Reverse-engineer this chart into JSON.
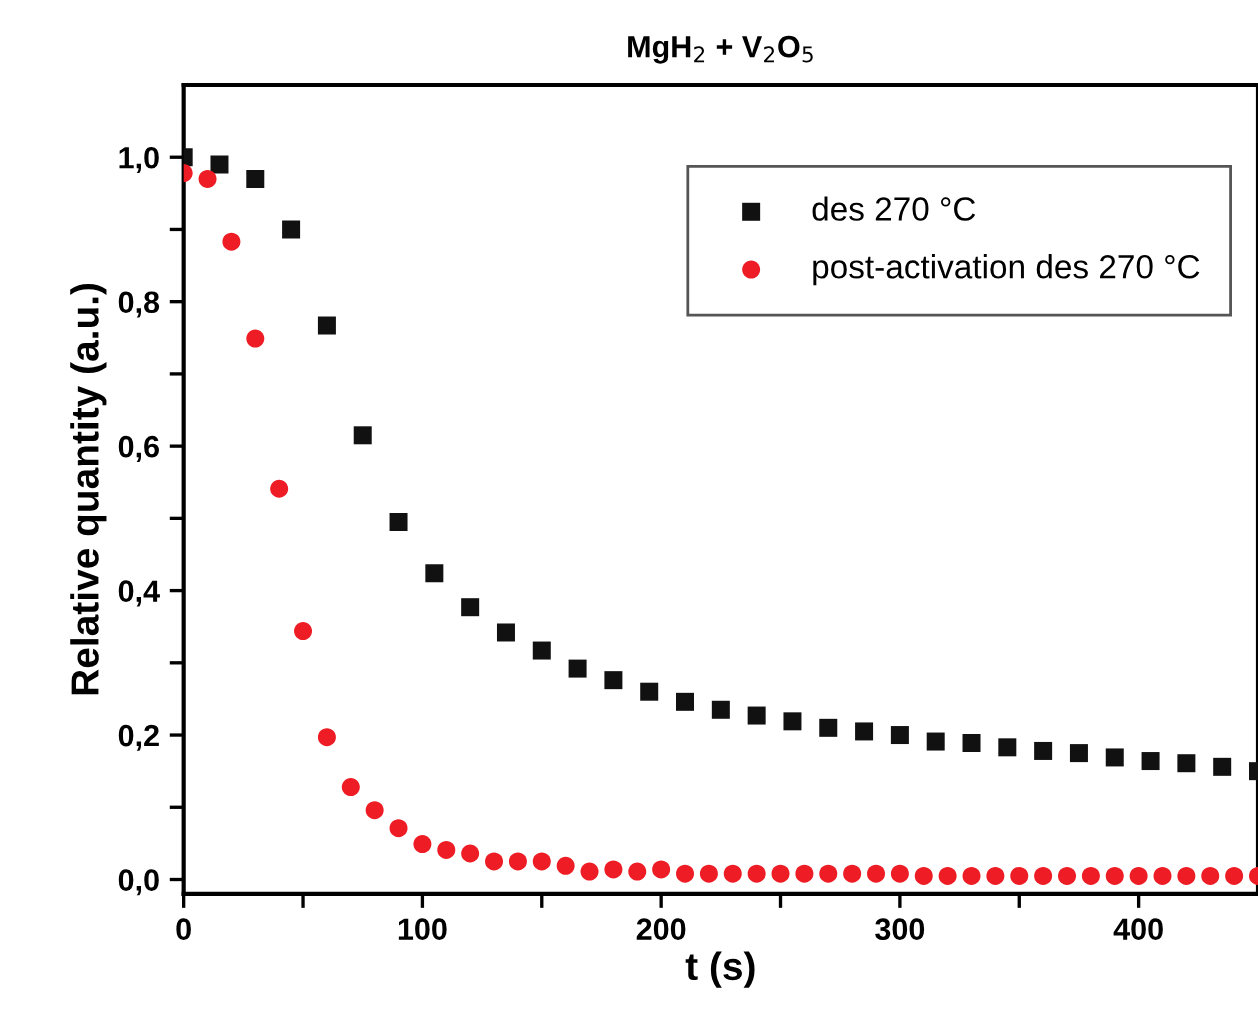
{
  "chart_data": {
    "type": "scatter",
    "title": "MgH$_{2}$ + V$_{2}$O$_{5}$",
    "xlabel": "t (s)",
    "ylabel": "Relative quantity (a.u.)",
    "xlim": [
      0,
      450
    ],
    "ylim": [
      -0.02,
      1.1
    ],
    "xticks": [
      0,
      {
        "value": 50,
        "label": null
      },
      100,
      {
        "value": 150,
        "label": null
      },
      200,
      {
        "value": 250,
        "label": null
      },
      300,
      {
        "value": 350,
        "label": null
      },
      400
    ],
    "yticks": [
      {
        "value": 0,
        "label": "0,0"
      },
      {
        "value": 0.1,
        "label": null
      },
      {
        "value": 0.2,
        "label": "0,2"
      },
      {
        "value": 0.3,
        "label": null
      },
      {
        "value": 0.4,
        "label": "0,4"
      },
      {
        "value": 0.5,
        "label": null
      },
      {
        "value": 0.6,
        "label": "0,6"
      },
      {
        "value": 0.7,
        "label": null
      },
      {
        "value": 0.8,
        "label": "0,8"
      },
      {
        "value": 0.9,
        "label": null
      },
      {
        "value": 1.0,
        "label": "1,0"
      }
    ],
    "legend": "top right",
    "grid": false,
    "series": [
      {
        "name": "des 270 °C",
        "color": "#111111",
        "marker": "square",
        "x": [
          0,
          15,
          30,
          45,
          60,
          75,
          90,
          105,
          120,
          135,
          150,
          165,
          180,
          195,
          210,
          225,
          240,
          255,
          270,
          285,
          300,
          315,
          330,
          345,
          360,
          375,
          390,
          405,
          420,
          435,
          450
        ],
        "values": [
          1.0,
          0.99,
          0.97,
          0.9,
          0.767,
          0.615,
          0.495,
          0.424,
          0.377,
          0.342,
          0.317,
          0.292,
          0.276,
          0.26,
          0.246,
          0.235,
          0.227,
          0.219,
          0.21,
          0.205,
          0.2,
          0.191,
          0.189,
          0.183,
          0.178,
          0.175,
          0.169,
          0.164,
          0.161,
          0.156,
          0.15
        ]
      },
      {
        "name": "post-activation des 270 °C",
        "color": "#ee1c24",
        "marker": "circle",
        "x": [
          0,
          10,
          20,
          30,
          40,
          50,
          60,
          70,
          80,
          90,
          100,
          110,
          120,
          130,
          140,
          150,
          160,
          170,
          180,
          190,
          200,
          210,
          220,
          230,
          240,
          250,
          260,
          270,
          280,
          290,
          300,
          310,
          320,
          330,
          340,
          350,
          360,
          370,
          380,
          390,
          400,
          410,
          420,
          430,
          440,
          450
        ],
        "values": [
          0.978,
          0.97,
          0.883,
          0.749,
          0.541,
          0.344,
          0.197,
          0.128,
          0.096,
          0.071,
          0.049,
          0.041,
          0.036,
          0.025,
          0.025,
          0.025,
          0.019,
          0.011,
          0.014,
          0.011,
          0.014,
          0.008,
          0.008,
          0.008,
          0.008,
          0.008,
          0.008,
          0.008,
          0.008,
          0.008,
          0.008,
          0.005,
          0.005,
          0.005,
          0.005,
          0.005,
          0.005,
          0.005,
          0.005,
          0.005,
          0.005,
          0.005,
          0.005,
          0.005,
          0.005,
          0.005
        ]
      }
    ]
  }
}
